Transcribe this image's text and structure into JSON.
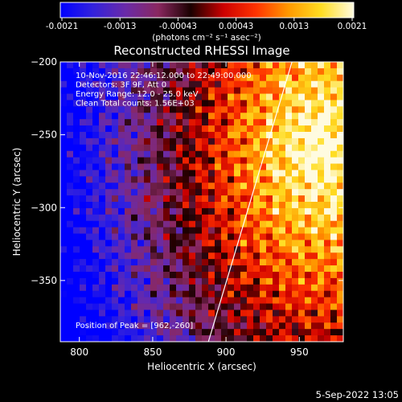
{
  "colorbar": {
    "ticks": [
      "-0.0021",
      "-0.0013",
      "-0.00043",
      "0.00043",
      "0.0013",
      "0.0021"
    ],
    "unit_label": "(photons cm⁻² s⁻¹ asec⁻²)",
    "colors": [
      "#0000ff",
      "#3322dd",
      "#6a2aa8",
      "#8a2860",
      "#1a0000",
      "#cc0000",
      "#ff3300",
      "#ff9900",
      "#ffdd22",
      "#fffbe0"
    ]
  },
  "chart_data": {
    "type": "heatmap",
    "title": "Reconstructed RHESSI Image",
    "xlabel": "Heliocentric X (arcsec)",
    "ylabel": "Heliocentric Y (arcsec)",
    "xlim": [
      787,
      980
    ],
    "ylim": [
      -392,
      -200
    ],
    "x_ticks": [
      800,
      850,
      900,
      950
    ],
    "y_ticks": [
      -200,
      -250,
      -300,
      -350
    ],
    "value_range": [
      -0.0021,
      0.0021
    ],
    "peak": [
      962,
      -260
    ],
    "limb_line": [
      [
        888,
        -392
      ],
      [
        945,
        -200
      ]
    ],
    "annotations": [
      "10-Nov-2016 22:46:12.000 to 22:49:00.000",
      "Detectors: 3F 9F, Att 0",
      "Energy Range: 12.0 - 25.0 keV",
      "Clean    Total counts: 1.56E+03"
    ],
    "peak_label": "Position of Peak = [962,-260]"
  },
  "footer": {
    "date": "5-Sep-2022 13:05"
  }
}
